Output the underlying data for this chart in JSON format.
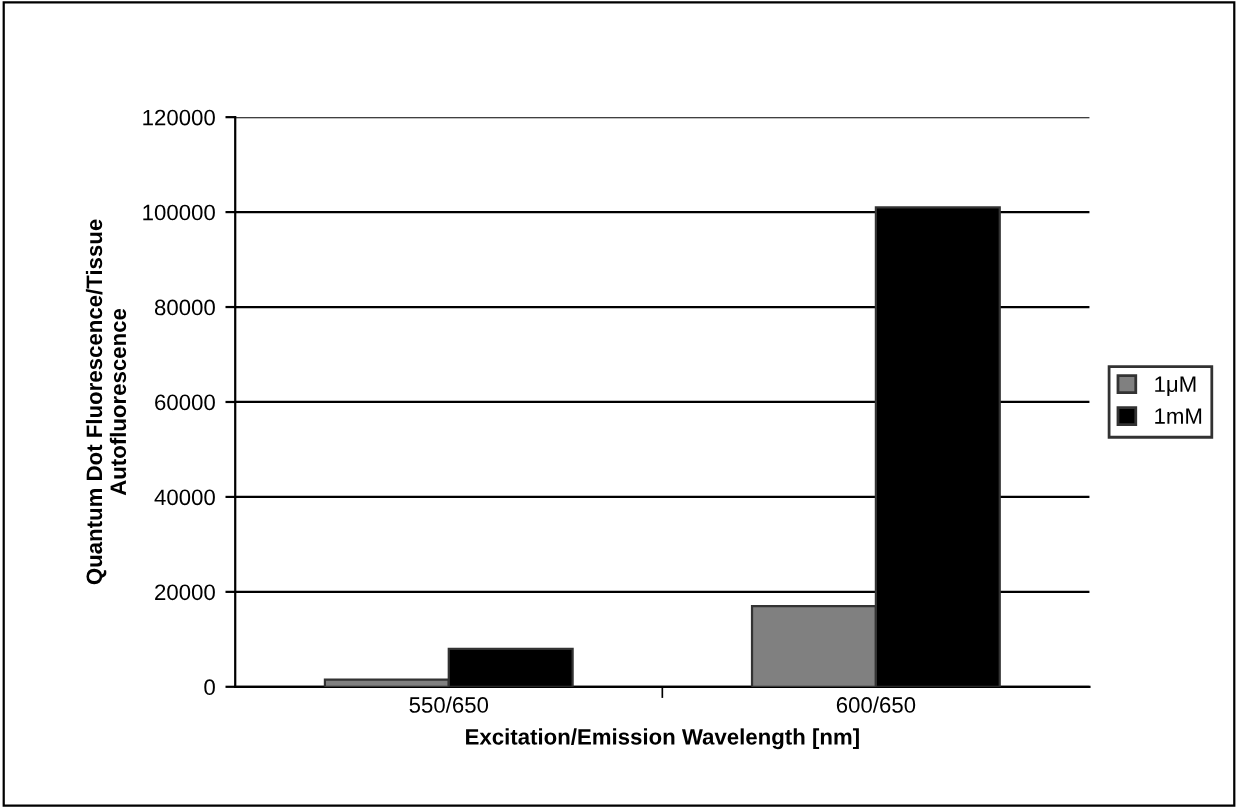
{
  "chart_data": {
    "type": "bar",
    "categories": [
      "550/650",
      "600/650"
    ],
    "series": [
      {
        "name": "1μM",
        "color": "#808080",
        "values": [
          1500,
          17000
        ]
      },
      {
        "name": "1mM",
        "color": "#000000",
        "values": [
          8000,
          101000
        ]
      }
    ],
    "xlabel": "Excitation/Emission Wavelength [nm]",
    "ylabel": "Quantum Dot Fluorescence/Tissue\nAutofluorescence",
    "ylim": [
      0,
      120000
    ],
    "yticks": [
      0,
      20000,
      40000,
      60000,
      80000,
      100000,
      120000
    ],
    "grid": "y",
    "legend": "right"
  }
}
